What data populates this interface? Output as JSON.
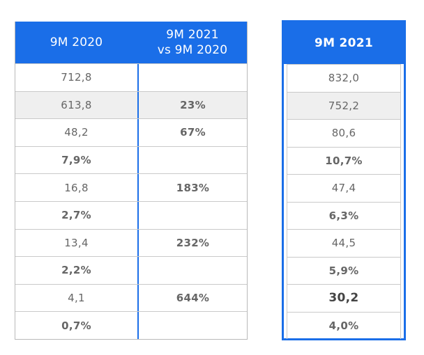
{
  "left_table": {
    "header": {
      "col1": "9M 2020",
      "col2": "9M 2021\nvs 9M 2020"
    },
    "rows": [
      {
        "value": "712,8",
        "growth": ""
      },
      {
        "value": "613,8",
        "growth": "23%"
      },
      {
        "value": "48,2",
        "growth": "67%"
      },
      {
        "value": "7,9%",
        "growth": ""
      },
      {
        "value": "16,8",
        "growth": "183%"
      },
      {
        "value": "2,7%",
        "growth": ""
      },
      {
        "value": "13,4",
        "growth": "232%"
      },
      {
        "value": "2,2%",
        "growth": ""
      },
      {
        "value": "4,1",
        "growth": "644%"
      },
      {
        "value": "0,7%",
        "growth": ""
      }
    ]
  },
  "right_table": {
    "header": "9M 2021",
    "rows": [
      "832,0",
      "752,2",
      "80,6",
      "10,7%",
      "47,4",
      "6,3%",
      "44,5",
      "5,9%",
      "30,2",
      "4,0%"
    ]
  },
  "colors": {
    "header_blue": "#1a6ee8",
    "percent_teal": "#19a5a0",
    "growth_blue": "#1a3fd8",
    "value_gray": "#666666",
    "shaded_row": "#efefef"
  }
}
